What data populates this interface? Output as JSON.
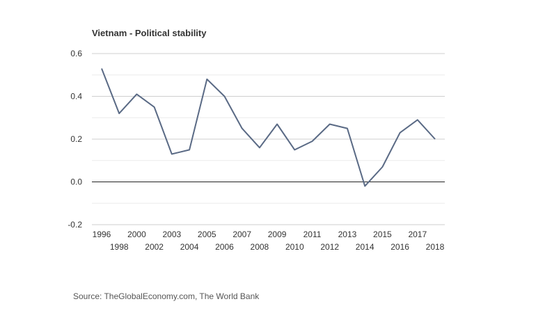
{
  "chart_data": {
    "type": "line",
    "title": "Vietnam - Political stability",
    "source": "Source: TheGlobalEconomy.com, The World Bank",
    "xlabel": "",
    "ylabel": "",
    "ylim": [
      -0.2,
      0.6
    ],
    "yticks": [
      "-0.2",
      "0.0",
      "0.2",
      "0.4",
      "0.6"
    ],
    "grid": true,
    "legend": "none",
    "line_color": "#5a6a85",
    "x": [
      1996,
      1998,
      2000,
      2002,
      2003,
      2004,
      2005,
      2006,
      2007,
      2008,
      2009,
      2010,
      2011,
      2012,
      2013,
      2014,
      2015,
      2016,
      2017,
      2018
    ],
    "series": [
      {
        "values": [
          0.53,
          0.32,
          0.41,
          0.35,
          0.13,
          0.15,
          0.48,
          0.4,
          0.25,
          0.16,
          0.27,
          0.15,
          0.19,
          0.27,
          0.25,
          -0.02,
          0.07,
          0.23,
          0.29,
          0.2
        ]
      }
    ]
  }
}
